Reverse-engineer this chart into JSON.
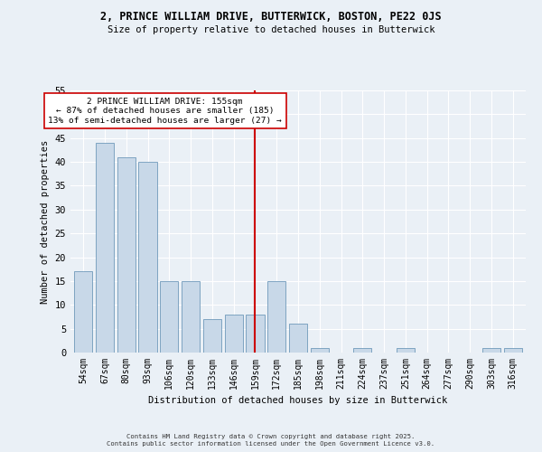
{
  "title1": "2, PRINCE WILLIAM DRIVE, BUTTERWICK, BOSTON, PE22 0JS",
  "title2": "Size of property relative to detached houses in Butterwick",
  "xlabel": "Distribution of detached houses by size in Butterwick",
  "ylabel": "Number of detached properties",
  "categories": [
    "54sqm",
    "67sqm",
    "80sqm",
    "93sqm",
    "106sqm",
    "120sqm",
    "133sqm",
    "146sqm",
    "159sqm",
    "172sqm",
    "185sqm",
    "198sqm",
    "211sqm",
    "224sqm",
    "237sqm",
    "251sqm",
    "264sqm",
    "277sqm",
    "290sqm",
    "303sqm",
    "316sqm"
  ],
  "values": [
    17,
    44,
    41,
    40,
    15,
    15,
    7,
    8,
    8,
    15,
    6,
    1,
    0,
    1,
    0,
    1,
    0,
    0,
    0,
    1,
    1
  ],
  "bar_color": "#c8d8e8",
  "bar_edge_color": "#5a8ab0",
  "vline_x": 8.0,
  "annotation_line1": "2 PRINCE WILLIAM DRIVE: 155sqm",
  "annotation_line2": "← 87% of detached houses are smaller (185)",
  "annotation_line3": "13% of semi-detached houses are larger (27) →",
  "vline_color": "#cc0000",
  "ylim": [
    0,
    55
  ],
  "yticks": [
    0,
    5,
    10,
    15,
    20,
    25,
    30,
    35,
    40,
    45,
    50,
    55
  ],
  "footer1": "Contains HM Land Registry data © Crown copyright and database right 2025.",
  "footer2": "Contains public sector information licensed under the Open Government Licence v3.0.",
  "bg_color": "#eaf0f6"
}
